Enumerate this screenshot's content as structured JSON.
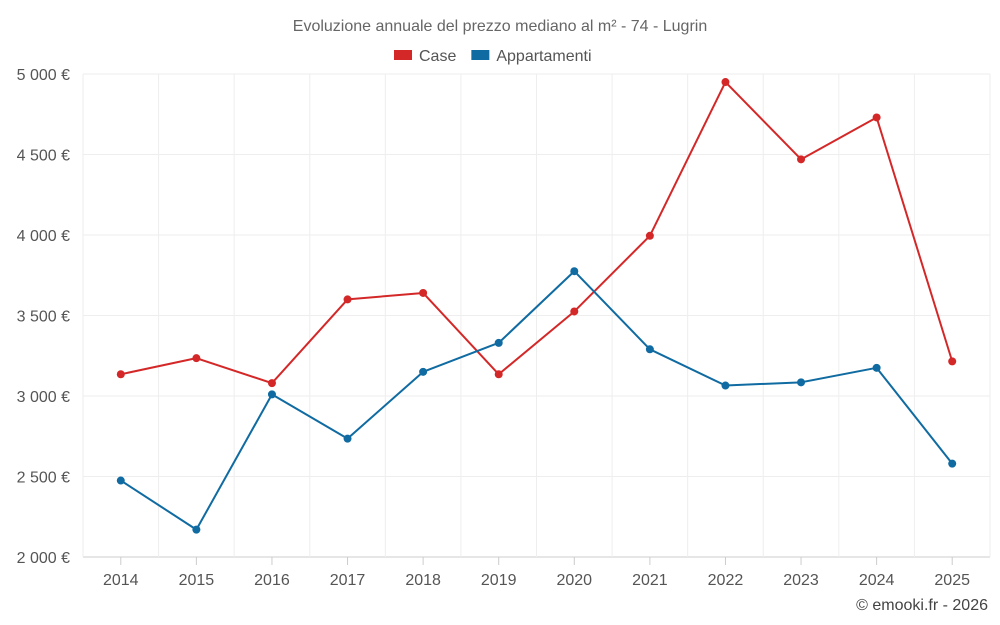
{
  "chart_data": {
    "type": "line",
    "title": "Evoluzione annuale del prezzo mediano al m² - 74 - Lugrin",
    "categories": [
      "2014",
      "2015",
      "2016",
      "2017",
      "2018",
      "2019",
      "2020",
      "2021",
      "2022",
      "2023",
      "2024",
      "2025"
    ],
    "series": [
      {
        "name": "Case",
        "color": "#d42828",
        "values": [
          3135,
          3235,
          3080,
          3600,
          3640,
          3135,
          3525,
          3995,
          4950,
          4470,
          4730,
          3215
        ]
      },
      {
        "name": "Appartamenti",
        "color": "#0f6ba1",
        "values": [
          2475,
          2170,
          3010,
          2735,
          3150,
          3330,
          3775,
          3290,
          3065,
          3085,
          3175,
          2580
        ]
      }
    ],
    "ylim": [
      2000,
      5000
    ],
    "yticks": [
      2000,
      2500,
      3000,
      3500,
      4000,
      4500,
      5000
    ],
    "ytick_labels": [
      "2 000 €",
      "2 500 €",
      "3 000 €",
      "3 500 €",
      "4 000 €",
      "4 500 €",
      "5 000 €"
    ],
    "xlabel": "",
    "ylabel": "",
    "grid": true,
    "legend_position": "top-center"
  },
  "credit": "© emooki.fr - 2026"
}
